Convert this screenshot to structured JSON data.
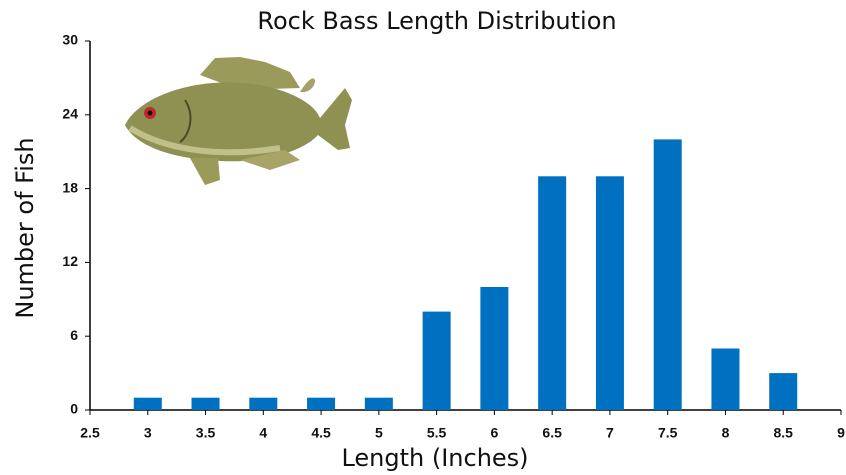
{
  "chart_data": {
    "type": "bar",
    "title": "Rock Bass Length Distribution",
    "x_label": "Length (Inches)",
    "y_label": "Number of Fish",
    "x": [
      3,
      3.5,
      4,
      4.5,
      5,
      5.5,
      6,
      6.5,
      7,
      7.5,
      8,
      8.5
    ],
    "values": [
      1,
      1,
      1,
      1,
      1,
      8,
      10,
      19,
      19,
      22,
      5,
      3
    ],
    "color": "#0070c0",
    "xlim": [
      2.5,
      9
    ],
    "xticks": [
      2.5,
      3,
      3.5,
      4,
      4.5,
      5,
      5.5,
      6,
      6.5,
      7,
      7.5,
      8,
      8.5,
      9
    ],
    "ylim": [
      0,
      30
    ],
    "yticks": [
      0,
      6,
      12,
      18,
      24,
      30
    ],
    "grid": false
  }
}
